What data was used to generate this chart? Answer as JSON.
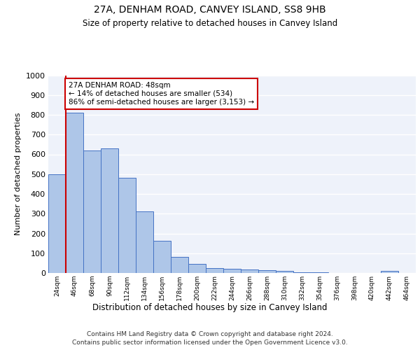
{
  "title": "27A, DENHAM ROAD, CANVEY ISLAND, SS8 9HB",
  "subtitle": "Size of property relative to detached houses in Canvey Island",
  "xlabel": "Distribution of detached houses by size in Canvey Island",
  "ylabel": "Number of detached properties",
  "bin_labels": [
    "24sqm",
    "46sqm",
    "68sqm",
    "90sqm",
    "112sqm",
    "134sqm",
    "156sqm",
    "178sqm",
    "200sqm",
    "222sqm",
    "244sqm",
    "266sqm",
    "288sqm",
    "310sqm",
    "332sqm",
    "354sqm",
    "376sqm",
    "398sqm",
    "420sqm",
    "442sqm",
    "464sqm"
  ],
  "bar_heights": [
    500,
    810,
    620,
    630,
    480,
    310,
    163,
    82,
    45,
    25,
    22,
    18,
    13,
    10,
    5,
    2,
    1,
    1,
    0,
    10,
    0
  ],
  "bar_color": "#aec6e8",
  "bar_edge_color": "#4472c4",
  "ylim": [
    0,
    1000
  ],
  "yticks": [
    0,
    100,
    200,
    300,
    400,
    500,
    600,
    700,
    800,
    900,
    1000
  ],
  "red_line_x": 1,
  "annotation_text": "27A DENHAM ROAD: 48sqm\n← 14% of detached houses are smaller (534)\n86% of semi-detached houses are larger (3,153) →",
  "annotation_box_color": "#ffffff",
  "annotation_box_edge": "#cc0000",
  "footer_line1": "Contains HM Land Registry data © Crown copyright and database right 2024.",
  "footer_line2": "Contains public sector information licensed under the Open Government Licence v3.0.",
  "bg_color": "#eef2fa",
  "grid_color": "#ffffff"
}
